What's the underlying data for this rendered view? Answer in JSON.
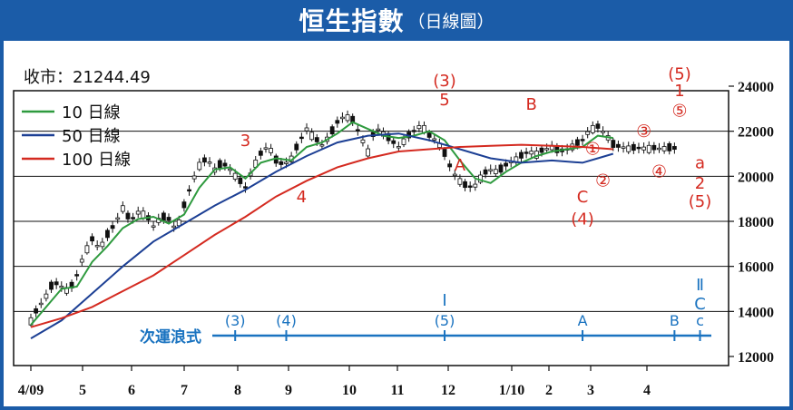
{
  "header": {
    "title": "恒生指數",
    "subtitle": "（日線圖）"
  },
  "chart_data": {
    "type": "line",
    "title": "恒生指數",
    "close_label": "收市：21244.49",
    "x_ticks": [
      "4/09",
      "5",
      "6",
      "7",
      "8",
      "9",
      "10",
      "11",
      "12",
      "1/10",
      "2",
      "3",
      "4"
    ],
    "y_ticks": [
      "24000",
      "22000",
      "20000",
      "18000",
      "16000",
      "14000",
      "12000"
    ],
    "ylim": [
      12000,
      24000
    ],
    "grid_lines": [
      14000,
      16000,
      18000,
      20000,
      22000
    ],
    "legend": [
      {
        "name": "10 日線",
        "color": "#2e9a3e"
      },
      {
        "name": "50 日線",
        "color": "#1c3f94"
      },
      {
        "name": "100 日線",
        "color": "#d42a20"
      }
    ],
    "series": [
      {
        "name": "price",
        "x": [
          0,
          3,
          6,
          9,
          12,
          15,
          18,
          21,
          24,
          27,
          30,
          33,
          36,
          39,
          42,
          45,
          48,
          51,
          54,
          57,
          60,
          63,
          66,
          69,
          72,
          75,
          78,
          81,
          84,
          87,
          90,
          93,
          96,
          99,
          102,
          105,
          108,
          111,
          114,
          117,
          120,
          123,
          126,
          129,
          132,
          135,
          138,
          141,
          144,
          147,
          150,
          153,
          156,
          159,
          162,
          165,
          168,
          171,
          174,
          177,
          180,
          183,
          186,
          189,
          192,
          195,
          198,
          201,
          204,
          207,
          210,
          213,
          216,
          219,
          222,
          225,
          228,
          231,
          234,
          237,
          240,
          243,
          246,
          249,
          252
        ],
        "y": [
          13600,
          14200,
          14700,
          15300,
          15100,
          14900,
          15600,
          16600,
          17200,
          16800,
          17400,
          17900,
          18600,
          18000,
          18400,
          18300,
          17800,
          18200,
          18100,
          17600,
          18700,
          19700,
          20500,
          20800,
          20300,
          20600,
          20300,
          19900,
          19500,
          20400,
          21000,
          21400,
          20700,
          20500,
          20800,
          21500,
          22100,
          21700,
          21400,
          21800,
          22400,
          22700,
          22500,
          21800,
          21100,
          22200,
          21900,
          21600,
          21300,
          21700,
          22000,
          22300,
          21800,
          21600,
          21000,
          20200,
          19800,
          19500,
          19600,
          20100,
          20300,
          20200,
          20500,
          20700,
          20900,
          21100,
          21000,
          21200,
          21300,
          21100,
          21200,
          21400,
          21600,
          22100,
          22200,
          21900,
          21400,
          21300,
          21250,
          21250,
          21250,
          21250,
          21250,
          21250,
          21244
        ]
      },
      {
        "name": "10 日線",
        "x": [
          0,
          6,
          12,
          18,
          24,
          30,
          36,
          42,
          48,
          54,
          60,
          66,
          72,
          78,
          84,
          90,
          96,
          102,
          108,
          114,
          120,
          126,
          132,
          138,
          144,
          150,
          156,
          162,
          168,
          174,
          180,
          186,
          192,
          198,
          204,
          210,
          216,
          222,
          228
        ],
        "y": [
          13400,
          14200,
          15000,
          15100,
          16200,
          16900,
          17700,
          18100,
          18200,
          17900,
          18300,
          19500,
          20300,
          20400,
          19900,
          20600,
          20800,
          20700,
          21300,
          21500,
          21900,
          22400,
          22100,
          21800,
          21700,
          21800,
          22000,
          21600,
          20700,
          19900,
          19700,
          20200,
          20600,
          20900,
          21100,
          21200,
          21300,
          21800,
          21700
        ]
      },
      {
        "name": "50 日線",
        "x": [
          0,
          12,
          24,
          36,
          48,
          60,
          72,
          84,
          96,
          108,
          120,
          132,
          144,
          156,
          168,
          180,
          192,
          204,
          216,
          222,
          228
        ],
        "y": [
          12800,
          13600,
          14800,
          16000,
          17100,
          17900,
          18700,
          19400,
          20200,
          20900,
          21500,
          21800,
          21900,
          21600,
          21200,
          20800,
          20600,
          20700,
          20600,
          20800,
          21000
        ]
      },
      {
        "name": "100 日線",
        "x": [
          0,
          12,
          24,
          36,
          48,
          60,
          72,
          84,
          96,
          108,
          120,
          132,
          144,
          156,
          168,
          180,
          192,
          204,
          216,
          228
        ],
        "y": [
          13300,
          13700,
          14200,
          14900,
          15600,
          16500,
          17400,
          18200,
          19100,
          19800,
          20400,
          20800,
          21100,
          21200,
          21300,
          21350,
          21400,
          21350,
          21300,
          21200
        ]
      }
    ],
    "wave_labels": [
      {
        "text": "3",
        "x": 42,
        "y": 21350,
        "color": "#d42a20"
      },
      {
        "text": "4",
        "x": 53,
        "y": 18850,
        "color": "#d42a20"
      },
      {
        "text": "(3)",
        "x": 81,
        "y": 24000,
        "color": "#d42a20"
      },
      {
        "text": "5",
        "x": 81,
        "y": 23150,
        "color": "#d42a20"
      },
      {
        "text": "A",
        "x": 84,
        "y": 20250,
        "color": "#d42a20"
      },
      {
        "text": "B",
        "x": 98,
        "y": 22950,
        "color": "#d42a20"
      },
      {
        "text": "①",
        "x": 110,
        "y": 20950,
        "color": "#d42a20"
      },
      {
        "text": "②",
        "x": 112,
        "y": 19550,
        "color": "#d42a20"
      },
      {
        "text": "C",
        "x": 108,
        "y": 18850,
        "color": "#d42a20"
      },
      {
        "text": "(4)",
        "x": 108,
        "y": 17850,
        "color": "#d42a20"
      },
      {
        "text": "③",
        "x": 120,
        "y": 21750,
        "color": "#d42a20"
      },
      {
        "text": "④",
        "x": 123,
        "y": 19950,
        "color": "#d42a20"
      },
      {
        "text": "(5)",
        "x": 127,
        "y": 24300,
        "color": "#d42a20"
      },
      {
        "text": "1",
        "x": 127,
        "y": 23550,
        "color": "#d42a20"
      },
      {
        "text": "⑤",
        "x": 127,
        "y": 22650,
        "color": "#d42a20"
      },
      {
        "text": "a",
        "x": 131,
        "y": 20350,
        "color": "#d42a20"
      },
      {
        "text": "2",
        "x": 131,
        "y": 19450,
        "color": "#d42a20"
      },
      {
        "text": "(5)",
        "x": 131,
        "y": 18650,
        "color": "#d42a20"
      }
    ],
    "subwave": {
      "label": "次運浪式",
      "color": "#1a73c0",
      "marks": [
        {
          "text": "(3)",
          "x": 40
        },
        {
          "text": "(4)",
          "x": 50
        },
        {
          "text": "(5)",
          "x": 81,
          "top": "Ⅰ"
        },
        {
          "text": "A",
          "x": 108
        },
        {
          "text": "B",
          "x": 126
        },
        {
          "text": "c",
          "x": 131,
          "top": "Ⅱ",
          "mid": "C"
        }
      ]
    }
  }
}
